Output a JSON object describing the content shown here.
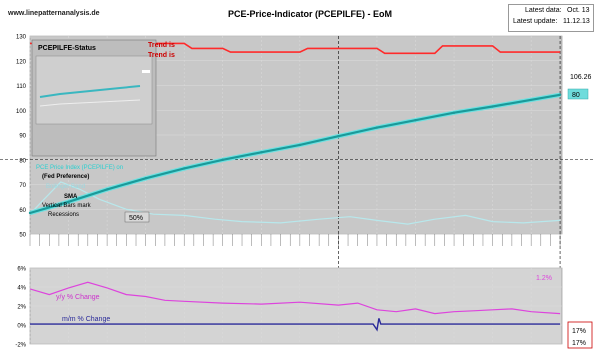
{
  "header": {
    "site": "www.linepatternanalysis.de",
    "title": "PCE-Price-Indicator (PCEPILFE) - EoM",
    "latest_data_label": "Latest data:",
    "latest_data_value": "Oct. 13",
    "latest_update_label": "Latest update:",
    "latest_update_value": "11.12.13"
  },
  "legend": {
    "status_title": "PCEPILFE-Status",
    "trend1": "Trend is",
    "trend2": "Trend is",
    "cyan_label": "PCE Price Index (PCEPILFE) on",
    "fed_pref": "(Fed Preference)",
    "bollinger": "Bollinger Band",
    "sma": "SMA",
    "vbars": "Vertical Bars mark",
    "recessions": "Recessions"
  },
  "labels": {
    "current_value": "106.26",
    "current_box": "80",
    "pct_label": "50%",
    "yy_change": "y/y % Change",
    "mm_change": "m/m % Change",
    "yy_value": "1.2%",
    "right1": "17%",
    "right2": "17%"
  },
  "colors": {
    "plot_bg": "#c8c8c8",
    "trend": "#ff2a2a",
    "index": "#1a9a9a",
    "index_outline": "#6ee0e0",
    "bollinger": "#b8e8ec",
    "yy": "#dd44dd",
    "mm": "#2a2a99",
    "grid": "#dcdcdc",
    "lower_bg": "#d4d4d4"
  },
  "chart_data": [
    {
      "type": "line",
      "ylim": [
        50,
        130
      ],
      "yticks": [
        50,
        60,
        70,
        80,
        90,
        100,
        110,
        120,
        130
      ],
      "xlim": [
        2000,
        2013.8
      ],
      "series": [
        {
          "x": [
            2000.0,
            2001.0,
            2002.0,
            2003.0,
            2004.0,
            2005.0,
            2006.0,
            2007.0,
            2008.0,
            2009.0,
            2010.0,
            2011.0,
            2012.0,
            2013.75
          ],
          "values": [
            58.5,
            63.0,
            68.0,
            72.5,
            76.5,
            80.0,
            83.0,
            86.0,
            89.5,
            93.0,
            96.0,
            99.0,
            101.5,
            106.26
          ]
        },
        {
          "x": [
            2000.0,
            2000.3,
            2000.8,
            2001.3,
            2001.8,
            2002.5,
            2003.2,
            2004.0,
            2004.8,
            2005.5,
            2006.5,
            2007.5,
            2008.3,
            2009.0,
            2009.8,
            2010.5,
            2011.3,
            2012.0,
            2012.8,
            2013.75
          ],
          "values": [
            58,
            63,
            71,
            68,
            64,
            60,
            58,
            57.5,
            56,
            55,
            54.5,
            56,
            57,
            55.5,
            54,
            56,
            57.5,
            55,
            54.5,
            55.5
          ]
        },
        {
          "x": [
            2000.0,
            2004.0,
            2004.2,
            2005.0,
            2005.2,
            2007.0,
            2007.2,
            2009.0,
            2009.2,
            2010.5,
            2010.7,
            2012.0,
            2012.2,
            2013.75
          ],
          "values": [
            127,
            127,
            125,
            125,
            123.5,
            123.5,
            125,
            125,
            123,
            123,
            126,
            126,
            123.5,
            123.5
          ]
        }
      ]
    },
    {
      "type": "line",
      "ylim": [
        -2,
        6
      ],
      "yticks": [
        -2,
        0,
        2,
        4,
        6
      ],
      "series": [
        {
          "x": [
            2000.0,
            2000.5,
            2001.0,
            2001.5,
            2002.0,
            2002.5,
            2003.0,
            2003.5,
            2004.0,
            2005.0,
            2006.0,
            2007.0,
            2008.0,
            2008.5,
            2009.0,
            2009.5,
            2010.0,
            2010.5,
            2011.0,
            2011.5,
            2012.0,
            2012.5,
            2013.0,
            2013.75
          ],
          "values": [
            3.8,
            3.2,
            3.9,
            4.5,
            3.9,
            3.2,
            3.0,
            2.6,
            2.5,
            2.3,
            2.2,
            2.4,
            2.1,
            2.3,
            1.6,
            1.4,
            1.7,
            1.2,
            1.4,
            1.5,
            1.6,
            1.7,
            1.4,
            1.2
          ]
        },
        {
          "x": [
            2000.0,
            2008.9,
            2009.0,
            2009.05,
            2009.1,
            2013.75
          ],
          "values": [
            0.1,
            0.1,
            -0.5,
            0.7,
            0.1,
            0.1
          ]
        }
      ]
    }
  ]
}
